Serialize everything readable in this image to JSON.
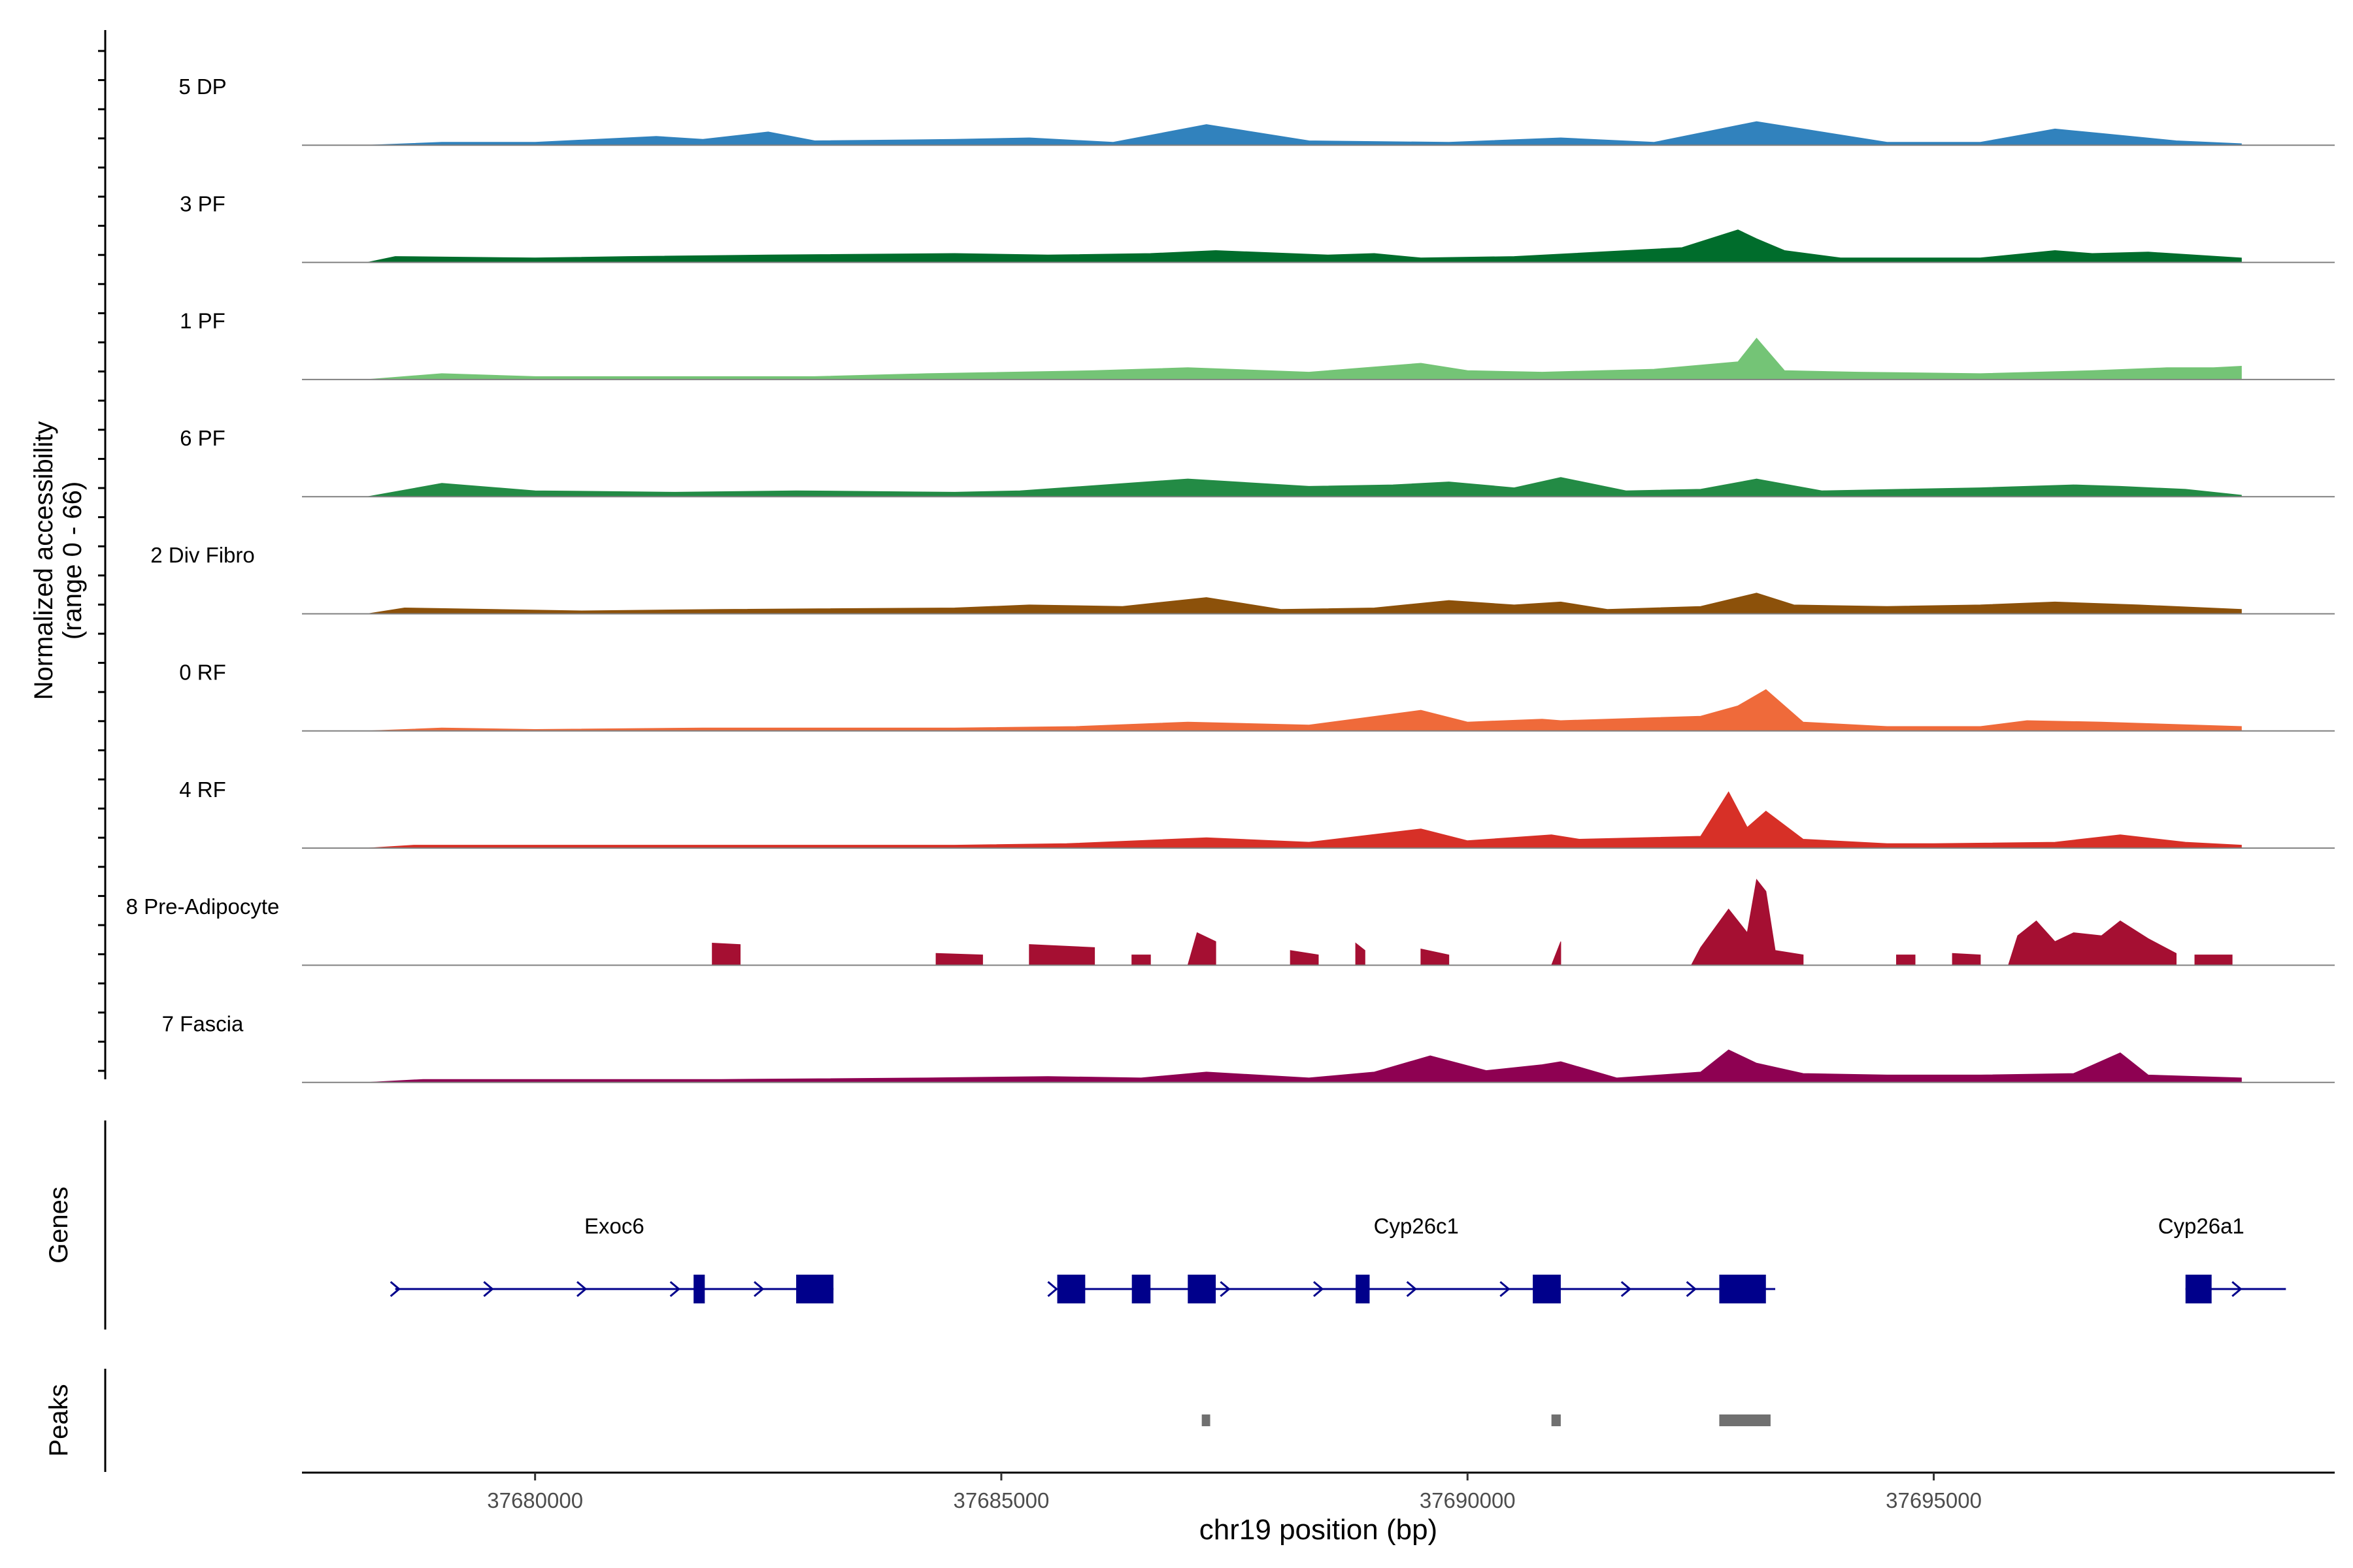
{
  "chart_data": {
    "type": "area",
    "title": "",
    "ylabel_line1": "Normalized accessibility",
    "ylabel_line2": "(range 0 - 66)",
    "xlabel": "chr19 position (bp)",
    "xlim": [
      37677500,
      37699300
    ],
    "ylim": [
      0,
      66
    ],
    "x_ticks": [
      37680000,
      37685000,
      37690000,
      37695000
    ],
    "x_tick_labels": [
      "37680000",
      "37685000",
      "37690000",
      "37695000"
    ],
    "genes_label": "Genes",
    "peaks_label": "Peaks",
    "series": [
      {
        "name": "5 DP",
        "color": "#3182bd",
        "points": [
          [
            37678200,
            0
          ],
          [
            37679000,
            2
          ],
          [
            37680000,
            2
          ],
          [
            37681300,
            6
          ],
          [
            37681800,
            4
          ],
          [
            37682500,
            9
          ],
          [
            37683000,
            3
          ],
          [
            37684500,
            4
          ],
          [
            37685300,
            5
          ],
          [
            37686200,
            2
          ],
          [
            37687200,
            14
          ],
          [
            37688300,
            3
          ],
          [
            37689800,
            2
          ],
          [
            37691000,
            5
          ],
          [
            37692000,
            2
          ],
          [
            37693100,
            16
          ],
          [
            37694500,
            2
          ],
          [
            37695500,
            2
          ],
          [
            37696300,
            11
          ],
          [
            37696800,
            8
          ],
          [
            37697600,
            3
          ],
          [
            37698300,
            1
          ]
        ]
      },
      {
        "name": "3 PF",
        "color": "#006d2c",
        "points": [
          [
            37678200,
            0
          ],
          [
            37678500,
            4
          ],
          [
            37680000,
            3
          ],
          [
            37681000,
            4
          ],
          [
            37682500,
            5
          ],
          [
            37684500,
            6
          ],
          [
            37685500,
            5
          ],
          [
            37686600,
            6
          ],
          [
            37687300,
            8
          ],
          [
            37688500,
            5
          ],
          [
            37689000,
            6
          ],
          [
            37689500,
            3
          ],
          [
            37690500,
            4
          ],
          [
            37692300,
            10
          ],
          [
            37692900,
            22
          ],
          [
            37693100,
            16
          ],
          [
            37693400,
            8
          ],
          [
            37694000,
            3
          ],
          [
            37695500,
            3
          ],
          [
            37696300,
            8
          ],
          [
            37696700,
            6
          ],
          [
            37697300,
            7
          ],
          [
            37698300,
            3
          ]
        ]
      },
      {
        "name": "1 PF",
        "color": "#74c476",
        "points": [
          [
            37678200,
            0
          ],
          [
            37679000,
            4
          ],
          [
            37680000,
            2
          ],
          [
            37683000,
            2
          ],
          [
            37684200,
            4
          ],
          [
            37686000,
            6
          ],
          [
            37687000,
            8
          ],
          [
            37688300,
            5
          ],
          [
            37689500,
            11
          ],
          [
            37690000,
            6
          ],
          [
            37690800,
            5
          ],
          [
            37692000,
            7
          ],
          [
            37692900,
            12
          ],
          [
            37693100,
            28
          ],
          [
            37693400,
            6
          ],
          [
            37694200,
            5
          ],
          [
            37695500,
            4
          ],
          [
            37696700,
            6
          ],
          [
            37697500,
            8
          ],
          [
            37698000,
            8
          ],
          [
            37698300,
            9
          ]
        ]
      },
      {
        "name": "6 PF",
        "color": "#238b45",
        "points": [
          [
            37678200,
            0
          ],
          [
            37679000,
            9
          ],
          [
            37680000,
            4
          ],
          [
            37681500,
            3
          ],
          [
            37682800,
            4
          ],
          [
            37684500,
            3
          ],
          [
            37685200,
            4
          ],
          [
            37687000,
            12
          ],
          [
            37688300,
            7
          ],
          [
            37689200,
            8
          ],
          [
            37689800,
            10
          ],
          [
            37690500,
            6
          ],
          [
            37691000,
            13
          ],
          [
            37691700,
            4
          ],
          [
            37692500,
            5
          ],
          [
            37693100,
            12
          ],
          [
            37693800,
            4
          ],
          [
            37695500,
            6
          ],
          [
            37696500,
            8
          ],
          [
            37697000,
            7
          ],
          [
            37697700,
            5
          ],
          [
            37698300,
            1
          ]
        ]
      },
      {
        "name": "2 Div Fibro",
        "color": "#8c510a",
        "points": [
          [
            37678200,
            0
          ],
          [
            37678600,
            4
          ],
          [
            37680500,
            2
          ],
          [
            37682000,
            3
          ],
          [
            37684500,
            4
          ],
          [
            37685300,
            6
          ],
          [
            37686300,
            5
          ],
          [
            37687200,
            11
          ],
          [
            37688000,
            3
          ],
          [
            37689000,
            4
          ],
          [
            37689800,
            9
          ],
          [
            37690500,
            6
          ],
          [
            37691000,
            8
          ],
          [
            37691500,
            3
          ],
          [
            37692500,
            5
          ],
          [
            37693100,
            14
          ],
          [
            37693500,
            6
          ],
          [
            37694500,
            5
          ],
          [
            37695500,
            6
          ],
          [
            37696300,
            8
          ],
          [
            37697200,
            6
          ],
          [
            37698300,
            3
          ]
        ]
      },
      {
        "name": "0 RF",
        "color": "#ef6a3a",
        "points": [
          [
            37678200,
            0
          ],
          [
            37679000,
            2
          ],
          [
            37680000,
            1
          ],
          [
            37681800,
            2
          ],
          [
            37683000,
            2
          ],
          [
            37684500,
            2
          ],
          [
            37685800,
            3
          ],
          [
            37687000,
            6
          ],
          [
            37688300,
            4
          ],
          [
            37689500,
            14
          ],
          [
            37690000,
            6
          ],
          [
            37690800,
            8
          ],
          [
            37691000,
            7
          ],
          [
            37692500,
            10
          ],
          [
            37692900,
            17
          ],
          [
            37693200,
            28
          ],
          [
            37693600,
            6
          ],
          [
            37694500,
            3
          ],
          [
            37695500,
            3
          ],
          [
            37696000,
            7
          ],
          [
            37696800,
            6
          ],
          [
            37698300,
            3
          ]
        ]
      },
      {
        "name": "4 RF",
        "color": "#d73027",
        "points": [
          [
            37678200,
            0
          ],
          [
            37678700,
            2
          ],
          [
            37680500,
            2
          ],
          [
            37682000,
            2
          ],
          [
            37683300,
            2
          ],
          [
            37684500,
            2
          ],
          [
            37685700,
            3
          ],
          [
            37687200,
            7
          ],
          [
            37688300,
            4
          ],
          [
            37689500,
            13
          ],
          [
            37690000,
            5
          ],
          [
            37690900,
            9
          ],
          [
            37691200,
            6
          ],
          [
            37692500,
            8
          ],
          [
            37692800,
            38
          ],
          [
            37693000,
            14
          ],
          [
            37693200,
            25
          ],
          [
            37693600,
            6
          ],
          [
            37694500,
            3
          ],
          [
            37695000,
            3
          ],
          [
            37696300,
            4
          ],
          [
            37697000,
            9
          ],
          [
            37697700,
            4
          ],
          [
            37698300,
            2
          ]
        ]
      },
      {
        "name": "8 Pre-Adipocyte",
        "color": "#a50f32",
        "points": [
          [
            37681900,
            0
          ],
          [
            37681900,
            15
          ],
          [
            37682200,
            14
          ],
          [
            37682200,
            0
          ],
          [
            37684300,
            0
          ],
          [
            37684300,
            8
          ],
          [
            37684800,
            7
          ],
          [
            37684800,
            0
          ],
          [
            37685300,
            0
          ],
          [
            37685300,
            14
          ],
          [
            37686000,
            12
          ],
          [
            37686000,
            0
          ],
          [
            37686400,
            0
          ],
          [
            37686400,
            7
          ],
          [
            37686600,
            7
          ],
          [
            37686600,
            0
          ],
          [
            37687000,
            0
          ],
          [
            37687100,
            22
          ],
          [
            37687300,
            16
          ],
          [
            37687300,
            0
          ],
          [
            37688100,
            0
          ],
          [
            37688100,
            10
          ],
          [
            37688400,
            7
          ],
          [
            37688400,
            0
          ],
          [
            37688800,
            0
          ],
          [
            37688800,
            15
          ],
          [
            37688900,
            10
          ],
          [
            37688900,
            0
          ],
          [
            37689500,
            0
          ],
          [
            37689500,
            11
          ],
          [
            37689800,
            7
          ],
          [
            37689800,
            0
          ],
          [
            37690900,
            0
          ],
          [
            37691000,
            16
          ],
          [
            37691000,
            0
          ],
          [
            37692400,
            0
          ],
          [
            37692500,
            12
          ],
          [
            37692800,
            38
          ],
          [
            37693000,
            22
          ],
          [
            37693100,
            58
          ],
          [
            37693200,
            50
          ],
          [
            37693300,
            10
          ],
          [
            37693600,
            7
          ],
          [
            37693600,
            0
          ],
          [
            37694600,
            0
          ],
          [
            37694600,
            7
          ],
          [
            37694800,
            7
          ],
          [
            37694800,
            0
          ],
          [
            37695200,
            0
          ],
          [
            37695200,
            8
          ],
          [
            37695500,
            7
          ],
          [
            37695500,
            0
          ],
          [
            37695800,
            0
          ],
          [
            37695900,
            20
          ],
          [
            37696100,
            30
          ],
          [
            37696300,
            16
          ],
          [
            37696500,
            22
          ],
          [
            37696800,
            20
          ],
          [
            37697000,
            30
          ],
          [
            37697300,
            18
          ],
          [
            37697600,
            8
          ],
          [
            37697600,
            0
          ],
          [
            37697800,
            0
          ],
          [
            37697800,
            7
          ],
          [
            37698200,
            7
          ],
          [
            37698200,
            0
          ]
        ]
      },
      {
        "name": "7 Fascia",
        "color": "#8e0152",
        "points": [
          [
            37678200,
            0
          ],
          [
            37678800,
            2
          ],
          [
            37680000,
            2
          ],
          [
            37682000,
            2
          ],
          [
            37684200,
            3
          ],
          [
            37685500,
            4
          ],
          [
            37686500,
            3
          ],
          [
            37687200,
            7
          ],
          [
            37688300,
            3
          ],
          [
            37689000,
            7
          ],
          [
            37689600,
            18
          ],
          [
            37690200,
            8
          ],
          [
            37690800,
            12
          ],
          [
            37691000,
            14
          ],
          [
            37691600,
            3
          ],
          [
            37692500,
            7
          ],
          [
            37692800,
            22
          ],
          [
            37693100,
            13
          ],
          [
            37693600,
            6
          ],
          [
            37694500,
            5
          ],
          [
            37695500,
            5
          ],
          [
            37696500,
            6
          ],
          [
            37697000,
            20
          ],
          [
            37697300,
            5
          ],
          [
            37698300,
            3
          ]
        ]
      }
    ],
    "genes": [
      {
        "name": "Exoc6",
        "start": 37678500,
        "end": 37683200,
        "strand": "+",
        "exons": [
          [
            37681700,
            37681820
          ],
          [
            37682800,
            37683200
          ]
        ],
        "arrows": [
          37678500,
          37679500,
          37680500,
          37681500,
          37682400
        ]
      },
      {
        "name": "Cyp26c1",
        "start": 37685600,
        "end": 37693300,
        "strand": "+",
        "exons": [
          [
            37685600,
            37685900
          ],
          [
            37686400,
            37686600
          ],
          [
            37687000,
            37687300
          ],
          [
            37688800,
            37688950
          ],
          [
            37690700,
            37691000
          ],
          [
            37692700,
            37693200
          ]
        ],
        "arrows": [
          37685550,
          37687400,
          37688400,
          37689400,
          37690400,
          37691700,
          37692400
        ]
      },
      {
        "name": "Cyp26a1",
        "start": 37697700,
        "end": 37698300,
        "strand": "+",
        "exons": [
          [
            37697700,
            37697980
          ]
        ],
        "arrows": [
          37698250
        ]
      }
    ],
    "peaks": [
      [
        37687150,
        37687240
      ],
      [
        37690900,
        37691000
      ],
      [
        37692700,
        37693250
      ]
    ]
  }
}
